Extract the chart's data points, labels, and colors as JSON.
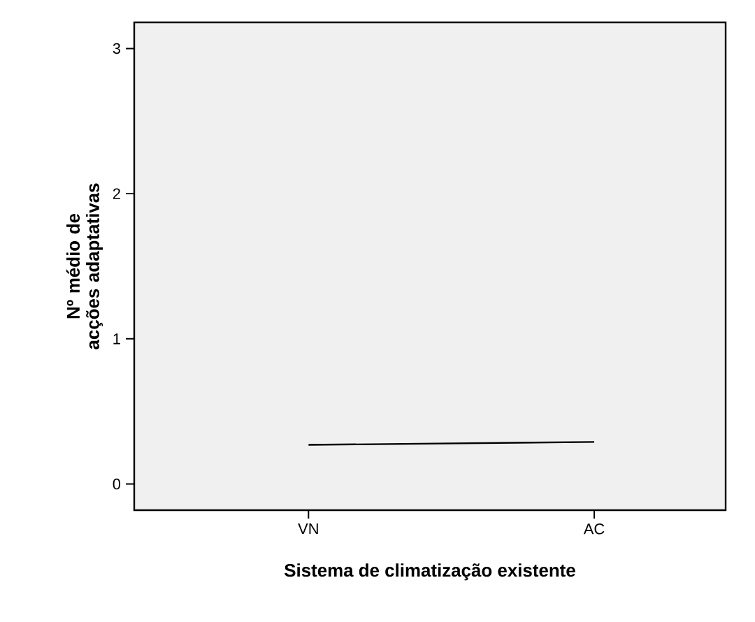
{
  "chart_data": {
    "type": "line",
    "xlabel": "Sistema de climatização existente",
    "ylabel": "Nº médio de acções adaptativas",
    "categories": [
      "VN",
      "AC"
    ],
    "series": [
      {
        "color": "#000000",
        "values": [
          0.27,
          0.29
        ]
      }
    ],
    "ylim": [
      -0.18,
      3.18
    ],
    "yticks": [
      0,
      1,
      2,
      3
    ],
    "grid": false,
    "marker": "none",
    "line_style": "solid"
  }
}
